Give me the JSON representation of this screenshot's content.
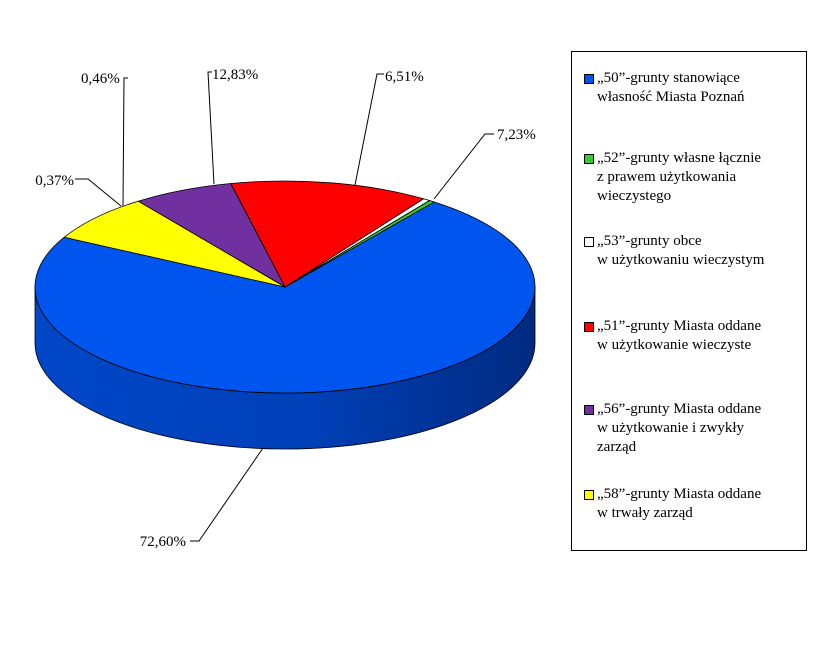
{
  "chart_data": {
    "type": "pie",
    "style": "3d",
    "title": "",
    "slices": [
      {
        "label": "„50”-grunty stanowiące\nwłasność Miasta Poznań",
        "value": 72.6,
        "value_label": "72,60%",
        "color": "#0055ee"
      },
      {
        "label": "„52”-grunty własne łącznie\nz prawem użytkowania\nwieczystego",
        "value": 0.37,
        "value_label": "0,37%",
        "color": "#33cc33"
      },
      {
        "label": "„53”-grunty obce\nw użytkowaniu  wieczystym",
        "value": 0.46,
        "value_label": "0,46%",
        "color": "#ffffff"
      },
      {
        "label": "„51”-grunty Miasta oddane\nw użytkowanie  wieczyste",
        "value": 12.83,
        "value_label": "12,83%",
        "color": "#ff0000"
      },
      {
        "label": "„56”-grunty Miasta oddane\nw użytkowanie  i zwykły\nzarząd",
        "value": 6.51,
        "value_label": "6,51%",
        "color": "#7030a0"
      },
      {
        "label": "„58”-grunty Miasta oddane\nw trwały zarząd",
        "value": 7.23,
        "value_label": "7,23%",
        "color": "#ffff00"
      }
    ],
    "legend_position": "right"
  }
}
